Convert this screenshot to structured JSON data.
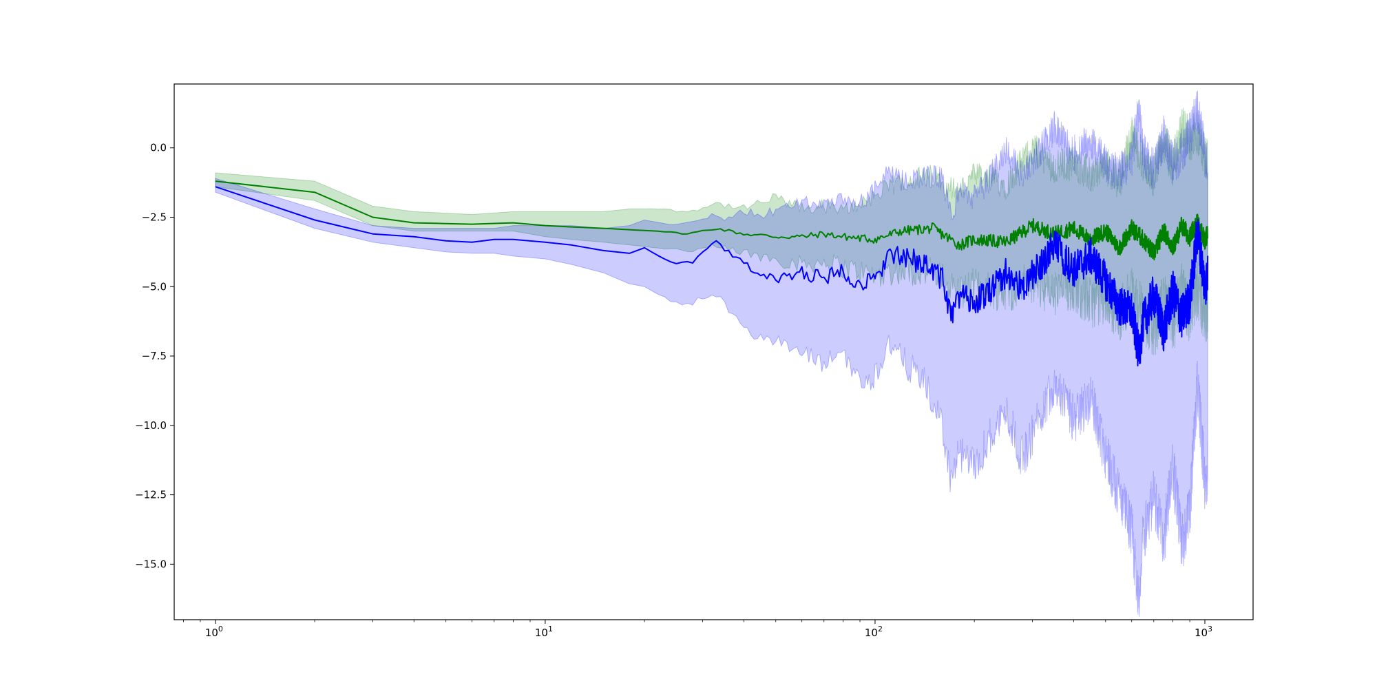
{
  "chart_data": {
    "type": "line",
    "x_scale": "log",
    "xlim": [
      0.75,
      1400
    ],
    "ylim": [
      -17.0,
      2.3
    ],
    "x_ticks": [
      {
        "value": 1,
        "base": "10",
        "exp": "0"
      },
      {
        "value": 10,
        "base": "10",
        "exp": "1"
      },
      {
        "value": 100,
        "base": "10",
        "exp": "2"
      },
      {
        "value": 1000,
        "base": "10",
        "exp": "3"
      }
    ],
    "y_ticks": [
      {
        "value": 0.0,
        "label": "0.0"
      },
      {
        "value": -2.5,
        "label": "−2.5"
      },
      {
        "value": -5.0,
        "label": "−5.0"
      },
      {
        "value": -7.5,
        "label": "−7.5"
      },
      {
        "value": -10.0,
        "label": "−10.0"
      },
      {
        "value": -12.5,
        "label": "−12.5"
      },
      {
        "value": -15.0,
        "label": "−15.0"
      }
    ],
    "grid": false,
    "legend": "none",
    "series": [
      {
        "color": "#008000",
        "fill_color": "#008000",
        "fill_opacity": 0.2,
        "x": [
          1,
          2,
          3,
          4,
          6,
          8,
          10,
          12,
          15,
          18,
          22,
          27,
          33,
          40,
          50,
          60,
          70,
          80,
          100,
          120,
          150,
          180,
          200,
          250,
          300,
          350,
          400,
          450,
          500,
          550,
          600,
          650,
          700,
          750,
          800,
          850,
          900,
          950,
          1000,
          1020
        ],
        "y": [
          -1.2,
          -1.6,
          -2.5,
          -2.7,
          -2.75,
          -2.7,
          -2.8,
          -2.85,
          -2.9,
          -2.95,
          -3.0,
          -3.1,
          -2.9,
          -3.1,
          -3.2,
          -3.2,
          -3.1,
          -3.2,
          -3.3,
          -3.0,
          -2.9,
          -3.5,
          -3.3,
          -3.4,
          -2.8,
          -3.1,
          -2.9,
          -3.3,
          -3.0,
          -3.6,
          -2.9,
          -3.3,
          -3.8,
          -3.0,
          -3.6,
          -2.8,
          -3.2,
          -2.7,
          -3.3,
          -3.1
        ],
        "band_low": [
          -1.4,
          -1.9,
          -2.8,
          -3.0,
          -3.0,
          -3.0,
          -3.2,
          -3.3,
          -3.4,
          -3.5,
          -3.6,
          -3.7,
          -3.6,
          -3.8,
          -4.0,
          -4.2,
          -4.1,
          -4.3,
          -4.6,
          -4.4,
          -4.5,
          -5.2,
          -5.0,
          -5.2,
          -4.8,
          -5.3,
          -5.0,
          -5.6,
          -5.4,
          -6.0,
          -5.3,
          -6.0,
          -6.6,
          -5.5,
          -6.4,
          -5.2,
          -6.0,
          -5.0,
          -6.2,
          -5.8
        ],
        "band_high": [
          -0.9,
          -1.2,
          -2.1,
          -2.3,
          -2.4,
          -2.3,
          -2.3,
          -2.3,
          -2.3,
          -2.2,
          -2.2,
          -2.3,
          -2.0,
          -2.2,
          -1.8,
          -2.2,
          -2.1,
          -2.3,
          -1.7,
          -1.2,
          -1.0,
          -1.6,
          -1.0,
          -1.3,
          0.0,
          -0.7,
          -0.5,
          -1.0,
          -0.6,
          -1.2,
          0.5,
          -0.5,
          -1.0,
          0.3,
          -0.7,
          0.8,
          0.3,
          0.6,
          -0.3,
          -0.4
        ]
      },
      {
        "color": "#0000ff",
        "fill_color": "#0000ff",
        "fill_opacity": 0.2,
        "x": [
          1,
          2,
          3,
          4,
          5,
          6,
          7,
          8,
          10,
          12,
          15,
          18,
          20,
          22,
          25,
          28,
          30,
          33,
          36,
          40,
          45,
          50,
          55,
          60,
          70,
          80,
          90,
          100,
          110,
          120,
          140,
          160,
          170,
          180,
          200,
          220,
          250,
          280,
          300,
          350,
          400,
          450,
          500,
          550,
          600,
          630,
          650,
          700,
          750,
          800,
          850,
          900,
          950,
          1000,
          1020
        ],
        "y": [
          -1.4,
          -2.6,
          -3.1,
          -3.2,
          -3.35,
          -3.4,
          -3.3,
          -3.3,
          -3.4,
          -3.5,
          -3.7,
          -3.8,
          -3.6,
          -3.9,
          -4.2,
          -4.1,
          -3.8,
          -3.4,
          -3.8,
          -4.2,
          -4.5,
          -4.8,
          -4.6,
          -4.5,
          -4.7,
          -4.4,
          -4.9,
          -4.8,
          -3.8,
          -4.0,
          -4.1,
          -4.7,
          -6.2,
          -5.3,
          -5.6,
          -5.2,
          -4.5,
          -5.1,
          -4.6,
          -3.5,
          -4.4,
          -3.9,
          -4.8,
          -5.7,
          -5.9,
          -7.4,
          -6.3,
          -5.3,
          -6.6,
          -5.2,
          -6.1,
          -5.5,
          -3.0,
          -5.0,
          -4.6
        ],
        "band_low": [
          -1.6,
          -2.9,
          -3.4,
          -3.6,
          -3.75,
          -3.8,
          -3.8,
          -3.9,
          -4.0,
          -4.2,
          -4.5,
          -4.9,
          -5.0,
          -5.3,
          -5.6,
          -5.6,
          -5.4,
          -5.3,
          -5.8,
          -6.3,
          -6.9,
          -7.0,
          -7.2,
          -7.4,
          -7.8,
          -7.3,
          -8.5,
          -8.2,
          -7.0,
          -7.6,
          -8.4,
          -10.0,
          -12.0,
          -11.0,
          -11.5,
          -10.5,
          -9.5,
          -11.2,
          -10.3,
          -8.4,
          -9.8,
          -9.0,
          -11.0,
          -12.5,
          -13.8,
          -16.3,
          -14.0,
          -12.5,
          -14.2,
          -11.5,
          -14.3,
          -13.2,
          -8.5,
          -12.0,
          -11.6
        ],
        "band_high": [
          -1.1,
          -2.2,
          -2.8,
          -2.9,
          -2.9,
          -2.9,
          -2.9,
          -2.8,
          -2.8,
          -2.8,
          -2.9,
          -2.8,
          -2.6,
          -2.7,
          -2.8,
          -2.7,
          -2.5,
          -2.4,
          -2.6,
          -2.3,
          -2.4,
          -2.3,
          -2.1,
          -1.9,
          -2.1,
          -1.9,
          -2.0,
          -1.5,
          -0.9,
          -1.2,
          -1.0,
          -1.1,
          -2.5,
          -1.5,
          -1.8,
          -1.2,
          0.0,
          -1.0,
          -0.5,
          0.7,
          -0.2,
          0.3,
          -0.6,
          -0.9,
          -0.4,
          1.4,
          -0.2,
          -0.8,
          0.4,
          -0.6,
          -0.1,
          0.5,
          1.4,
          -0.2,
          -0.5
        ]
      }
    ]
  }
}
